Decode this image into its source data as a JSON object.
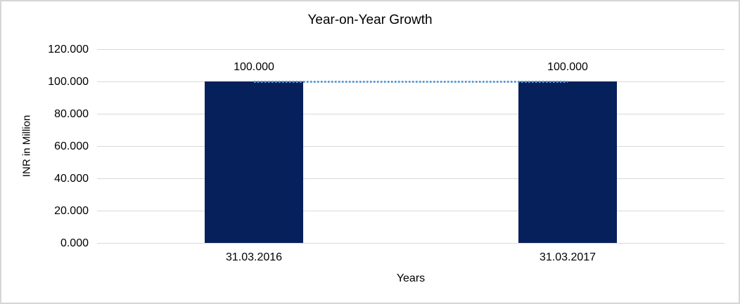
{
  "chart_data": {
    "type": "bar",
    "title": "Year-on-Year Growth",
    "xlabel": "Years",
    "ylabel": "INR in Million",
    "categories": [
      "31.03.2016",
      "31.03.2017"
    ],
    "values": [
      100000,
      100000
    ],
    "value_labels": [
      "100.000",
      "100.000"
    ],
    "trendline": {
      "type": "line",
      "style": "dotted",
      "values": [
        100000,
        100000
      ],
      "color": "#5b9bd5"
    },
    "ylim": [
      0,
      120000
    ],
    "ytick_step": 20000,
    "ytick_labels": [
      "0.000",
      "20.000",
      "40.000",
      "60.000",
      "80.000",
      "100.000",
      "120.000"
    ],
    "grid": true,
    "legend": "none",
    "bar_color": "#06205c",
    "gridline_color": "#d9d9d9",
    "text_color": "#000000",
    "frame_border_color": "#d6d6d6"
  }
}
